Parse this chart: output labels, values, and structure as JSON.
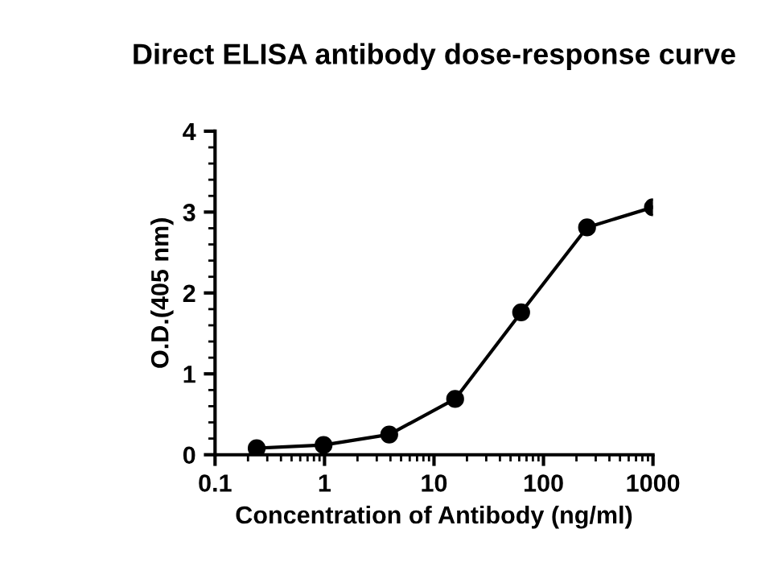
{
  "chart_data": {
    "type": "line",
    "title": "Direct ELISA antibody dose-response curve",
    "xlabel": "Concentration of Antibody (ng/ml)",
    "ylabel": "O.D.(405 nm)",
    "x": [
      0.24,
      0.98,
      3.9,
      15.6,
      62.5,
      250,
      1000
    ],
    "series": [
      {
        "color": "#000000",
        "values": [
          0.08,
          0.12,
          0.25,
          0.69,
          1.76,
          2.81,
          3.06
        ]
      }
    ],
    "log": "x",
    "xlim": [
      0.1,
      1000
    ],
    "xticks": [
      0.1,
      1,
      10,
      100,
      1000
    ],
    "ylim": [
      0,
      4
    ],
    "yticks": [
      0,
      1,
      2,
      3,
      4
    ],
    "marker": "circle",
    "line_style": "solid",
    "grid": false,
    "legend": false
  }
}
